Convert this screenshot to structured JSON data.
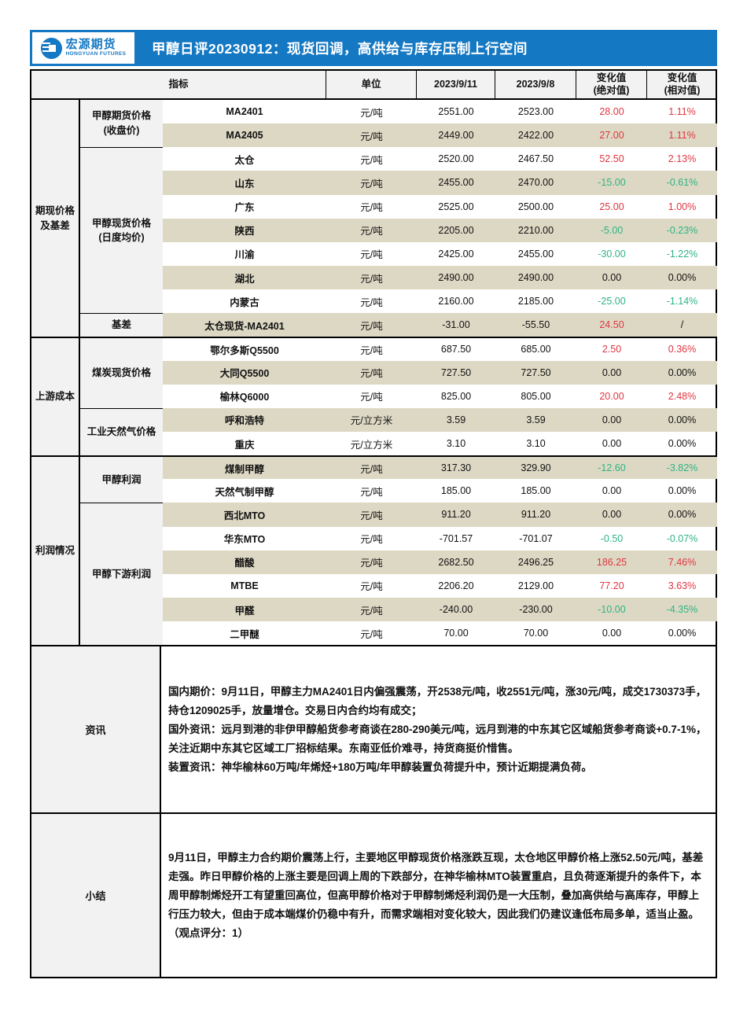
{
  "colors": {
    "header_blue": "#1478c3",
    "row_beige": "#ddd8c4",
    "label_gray": "#f2f2f2",
    "up_red": "#e03540",
    "down_green": "#2eb483"
  },
  "titlebar": {
    "logo_name": "宏源期货",
    "logo_subtitle": "HONGYUAN FUTURES",
    "title": "甲醇日评20230912：现货回调，高供给与库存压制上行空间"
  },
  "table": {
    "headers": {
      "indicator": "指标",
      "unit": "单位",
      "date1": "2023/9/11",
      "date2": "2023/9/8",
      "change_abs": "变化值\n(绝对值)",
      "change_rel": "变化值\n(相对值)"
    },
    "groups": [
      {
        "label": "期现价格\n及基差",
        "span": 10
      },
      {
        "label": "上游成本",
        "span": 5
      },
      {
        "label": "利润情况",
        "span": 8
      }
    ],
    "subgroups": [
      {
        "label": "甲醇期货价格\n(收盘价)",
        "span": 2
      },
      {
        "label": "甲醇现货价格\n(日度均价)",
        "span": 7
      },
      {
        "label": "基差",
        "span": 1
      },
      {
        "label": "煤炭现货价格",
        "span": 3
      },
      {
        "label": "工业天然气价格",
        "span": 2
      },
      {
        "label": "甲醇利润",
        "span": 2
      },
      {
        "label": "甲醇下游利润",
        "span": 6
      }
    ],
    "rows": [
      {
        "item": "MA2401",
        "unit": "元/吨",
        "v1": "2551.00",
        "v2": "2523.00",
        "abs": "28.00",
        "rel": "1.11%",
        "ac": "r",
        "rc": "r"
      },
      {
        "item": "MA2405",
        "unit": "元/吨",
        "v1": "2449.00",
        "v2": "2422.00",
        "abs": "27.00",
        "rel": "1.11%",
        "ac": "r",
        "rc": "r"
      },
      {
        "item": "太仓",
        "unit": "元/吨",
        "v1": "2520.00",
        "v2": "2467.50",
        "abs": "52.50",
        "rel": "2.13%",
        "ac": "r",
        "rc": "r"
      },
      {
        "item": "山东",
        "unit": "元/吨",
        "v1": "2455.00",
        "v2": "2470.00",
        "abs": "-15.00",
        "rel": "-0.61%",
        "ac": "g",
        "rc": "g"
      },
      {
        "item": "广东",
        "unit": "元/吨",
        "v1": "2525.00",
        "v2": "2500.00",
        "abs": "25.00",
        "rel": "1.00%",
        "ac": "r",
        "rc": "r"
      },
      {
        "item": "陕西",
        "unit": "元/吨",
        "v1": "2205.00",
        "v2": "2210.00",
        "abs": "-5.00",
        "rel": "-0.23%",
        "ac": "g",
        "rc": "g"
      },
      {
        "item": "川渝",
        "unit": "元/吨",
        "v1": "2425.00",
        "v2": "2455.00",
        "abs": "-30.00",
        "rel": "-1.22%",
        "ac": "g",
        "rc": "g"
      },
      {
        "item": "湖北",
        "unit": "元/吨",
        "v1": "2490.00",
        "v2": "2490.00",
        "abs": "0.00",
        "rel": "0.00%",
        "ac": "k",
        "rc": "k"
      },
      {
        "item": "内蒙古",
        "unit": "元/吨",
        "v1": "2160.00",
        "v2": "2185.00",
        "abs": "-25.00",
        "rel": "-1.14%",
        "ac": "g",
        "rc": "g"
      },
      {
        "item": "太仓现货-MA2401",
        "unit": "元/吨",
        "v1": "-31.00",
        "v2": "-55.50",
        "abs": "24.50",
        "rel": "/",
        "ac": "r",
        "rc": "k"
      },
      {
        "item": "鄂尔多斯Q5500",
        "unit": "元/吨",
        "v1": "687.50",
        "v2": "685.00",
        "abs": "2.50",
        "rel": "0.36%",
        "ac": "r",
        "rc": "r"
      },
      {
        "item": "大同Q5500",
        "unit": "元/吨",
        "v1": "727.50",
        "v2": "727.50",
        "abs": "0.00",
        "rel": "0.00%",
        "ac": "k",
        "rc": "k"
      },
      {
        "item": "榆林Q6000",
        "unit": "元/吨",
        "v1": "825.00",
        "v2": "805.00",
        "abs": "20.00",
        "rel": "2.48%",
        "ac": "r",
        "rc": "r"
      },
      {
        "item": "呼和浩特",
        "unit": "元/立方米",
        "v1": "3.59",
        "v2": "3.59",
        "abs": "0.00",
        "rel": "0.00%",
        "ac": "k",
        "rc": "k"
      },
      {
        "item": "重庆",
        "unit": "元/立方米",
        "v1": "3.10",
        "v2": "3.10",
        "abs": "0.00",
        "rel": "0.00%",
        "ac": "k",
        "rc": "k"
      },
      {
        "item": "煤制甲醇",
        "unit": "元/吨",
        "v1": "317.30",
        "v2": "329.90",
        "abs": "-12.60",
        "rel": "-3.82%",
        "ac": "g",
        "rc": "g"
      },
      {
        "item": "天然气制甲醇",
        "unit": "元/吨",
        "v1": "185.00",
        "v2": "185.00",
        "abs": "0.00",
        "rel": "0.00%",
        "ac": "k",
        "rc": "k"
      },
      {
        "item": "西北MTO",
        "unit": "元/吨",
        "v1": "911.20",
        "v2": "911.20",
        "abs": "0.00",
        "rel": "0.00%",
        "ac": "k",
        "rc": "k"
      },
      {
        "item": "华东MTO",
        "unit": "元/吨",
        "v1": "-701.57",
        "v2": "-701.07",
        "abs": "-0.50",
        "rel": "-0.07%",
        "ac": "g",
        "rc": "g"
      },
      {
        "item": "醋酸",
        "unit": "元/吨",
        "v1": "2682.50",
        "v2": "2496.25",
        "abs": "186.25",
        "rel": "7.46%",
        "ac": "r",
        "rc": "r"
      },
      {
        "item": "MTBE",
        "unit": "元/吨",
        "v1": "2206.20",
        "v2": "2129.00",
        "abs": "77.20",
        "rel": "3.63%",
        "ac": "r",
        "rc": "r"
      },
      {
        "item": "甲醛",
        "unit": "元/吨",
        "v1": "-240.00",
        "v2": "-230.00",
        "abs": "-10.00",
        "rel": "-4.35%",
        "ac": "g",
        "rc": "g"
      },
      {
        "item": "二甲醚",
        "unit": "元/吨",
        "v1": "70.00",
        "v2": "70.00",
        "abs": "0.00",
        "rel": "0.00%",
        "ac": "k",
        "rc": "k"
      }
    ]
  },
  "news": {
    "label": "资讯",
    "lines": {
      "0": "国内期价：9月11日，甲醇主力MA2401日内偏强震荡，开2538元/吨，收2551元/吨，涨30元/吨，成交1730373手，持仓1209025手，放量增仓。交易日内合约均有成交；",
      "1": "国外资讯：远月到港的非伊甲醇船货参考商谈在280-290美元/吨，远月到港的中东其它区域船货参考商谈+0.7-1%，关注近期中东其它区域工厂招标结果。东南亚低价难寻，持货商挺价惜售。",
      "2": "装置资讯：神华榆林60万吨/年烯烃+180万吨/年甲醇装置负荷提升中，预计近期提满负荷。"
    }
  },
  "summary": {
    "label": "小结",
    "text": "9月11日，甲醇主力合约期价震荡上行，主要地区甲醇现货价格涨跌互现，太仓地区甲醇价格上涨52.50元/吨，基差走强。昨日甲醇价格的上涨主要是回调上周的下跌部分，在神华榆林MTO装置重启，且负荷逐渐提升的条件下，本周甲醇制烯烃开工有望重回高位，但高甲醇价格对于甲醇制烯烃利润仍是一大压制，叠加高供给与高库存，甲醇上行压力较大，但由于成本端煤价仍稳中有升，而需求端相对变化较大，因此我们仍建议逢低布局多单，适当止盈。（观点评分：1）"
  }
}
